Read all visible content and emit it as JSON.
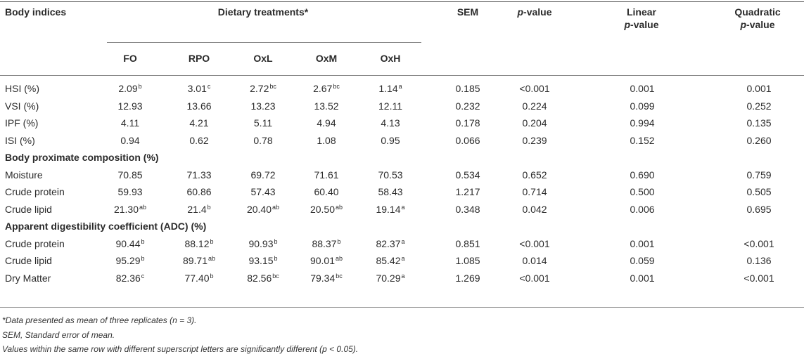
{
  "header": {
    "body_indices": "Body indices",
    "dietary": "Dietary treatments*",
    "sem": "SEM",
    "pvalue_p": "p",
    "pvalue_rest": "-value",
    "linear_line1": "Linear",
    "linear_p": "p",
    "linear_rest": "-value",
    "quad_line1": "Quadratic",
    "quad_p": "p",
    "quad_rest": "-value",
    "treatments": [
      "FO",
      "RPO",
      "OxL",
      "OxM",
      "OxH"
    ]
  },
  "rows": [
    {
      "label": "HSI (%)",
      "vals": [
        [
          "2.09",
          "b"
        ],
        [
          "3.01",
          "c"
        ],
        [
          "2.72",
          "bc"
        ],
        [
          "2.67",
          "bc"
        ],
        [
          "1.14",
          "a"
        ]
      ],
      "sem": "0.185",
      "p": "<0.001",
      "lin": "0.001",
      "quad": "0.001"
    },
    {
      "label": "VSI (%)",
      "vals": [
        [
          "12.93",
          ""
        ],
        [
          "13.66",
          ""
        ],
        [
          "13.23",
          ""
        ],
        [
          "13.52",
          ""
        ],
        [
          "12.11",
          ""
        ]
      ],
      "sem": "0.232",
      "p": "0.224",
      "lin": "0.099",
      "quad": "0.252"
    },
    {
      "label": "IPF (%)",
      "vals": [
        [
          "4.11",
          ""
        ],
        [
          "4.21",
          ""
        ],
        [
          "5.11",
          ""
        ],
        [
          "4.94",
          ""
        ],
        [
          "4.13",
          ""
        ]
      ],
      "sem": "0.178",
      "p": "0.204",
      "lin": "0.994",
      "quad": "0.135"
    },
    {
      "label": "ISI (%)",
      "vals": [
        [
          "0.94",
          ""
        ],
        [
          "0.62",
          ""
        ],
        [
          "0.78",
          ""
        ],
        [
          "1.08",
          ""
        ],
        [
          "0.95",
          ""
        ]
      ],
      "sem": "0.066",
      "p": "0.239",
      "lin": "0.152",
      "quad": "0.260"
    },
    {
      "section": "Body proximate composition (%)"
    },
    {
      "label": "Moisture",
      "vals": [
        [
          "70.85",
          ""
        ],
        [
          "71.33",
          ""
        ],
        [
          "69.72",
          ""
        ],
        [
          "71.61",
          ""
        ],
        [
          "70.53",
          ""
        ]
      ],
      "sem": "0.534",
      "p": "0.652",
      "lin": "0.690",
      "quad": "0.759"
    },
    {
      "label": "Crude protein",
      "vals": [
        [
          "59.93",
          ""
        ],
        [
          "60.86",
          ""
        ],
        [
          "57.43",
          ""
        ],
        [
          "60.40",
          ""
        ],
        [
          "58.43",
          ""
        ]
      ],
      "sem": "1.217",
      "p": "0.714",
      "lin": "0.500",
      "quad": "0.505"
    },
    {
      "label": "Crude lipid",
      "vals": [
        [
          "21.30",
          "ab"
        ],
        [
          "21.4",
          "b"
        ],
        [
          "20.40",
          "ab"
        ],
        [
          "20.50",
          "ab"
        ],
        [
          "19.14",
          "a"
        ]
      ],
      "sem": "0.348",
      "p": "0.042",
      "lin": "0.006",
      "quad": "0.695"
    },
    {
      "section": "Apparent digestibility coefficient (ADC) (%)"
    },
    {
      "label": "Crude protein",
      "vals": [
        [
          "90.44",
          "b"
        ],
        [
          "88.12",
          "b"
        ],
        [
          "90.93",
          "b"
        ],
        [
          "88.37",
          "b"
        ],
        [
          "82.37",
          "a"
        ]
      ],
      "sem": "0.851",
      "p": "<0.001",
      "lin": "0.001",
      "quad": "<0.001"
    },
    {
      "label": "Crude lipid",
      "vals": [
        [
          "95.29",
          "b"
        ],
        [
          "89.71",
          "ab"
        ],
        [
          "93.15",
          "b"
        ],
        [
          "90.01",
          "ab"
        ],
        [
          "85.42",
          "a"
        ]
      ],
      "sem": "1.085",
      "p": "0.014",
      "lin": "0.059",
      "quad": "0.136"
    },
    {
      "label": "Dry Matter",
      "vals": [
        [
          "82.36",
          "c"
        ],
        [
          "77.40",
          "b"
        ],
        [
          "82.56",
          "bc"
        ],
        [
          "79.34",
          "bc"
        ],
        [
          "70.29",
          "a"
        ]
      ],
      "sem": "1.269",
      "p": "<0.001",
      "lin": "0.001",
      "quad": "<0.001"
    }
  ],
  "footnotes": [
    "*Data presented as mean of three replicates (n = 3).",
    "SEM, Standard error of mean.",
    "Values within the same row with different superscript letters are significantly different (p < 0.05)."
  ]
}
